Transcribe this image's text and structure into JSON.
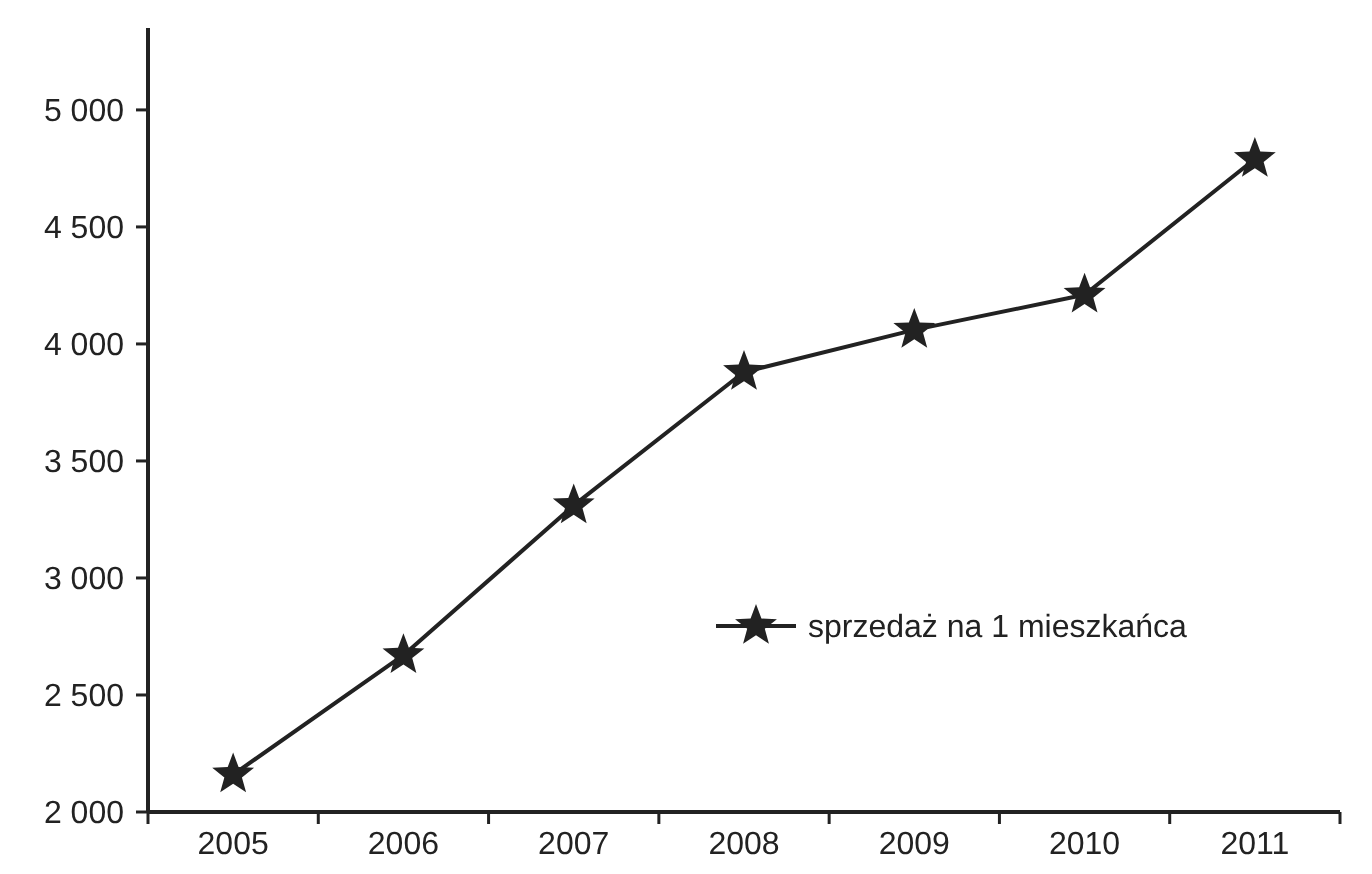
{
  "chart_data": {
    "type": "line",
    "categories": [
      "2005",
      "2006",
      "2007",
      "2008",
      "2009",
      "2010",
      "2011"
    ],
    "series": [
      {
        "name": "sprzedaż na 1 mieszkańca",
        "color": "#222222",
        "values": [
          2160,
          2670,
          3310,
          3880,
          4060,
          4210,
          4790
        ]
      }
    ],
    "ylim": [
      2000,
      5350
    ],
    "yticks": [
      {
        "value": 2000,
        "label": "2 000"
      },
      {
        "value": 2500,
        "label": "2 500"
      },
      {
        "value": 3000,
        "label": "3 000"
      },
      {
        "value": 3500,
        "label": "3 500"
      },
      {
        "value": 4000,
        "label": "4 000"
      },
      {
        "value": 4500,
        "label": "4 500"
      },
      {
        "value": 5000,
        "label": "5 000"
      }
    ],
    "grid": false,
    "legend": "right",
    "marker": "star",
    "line_style": "solid"
  }
}
